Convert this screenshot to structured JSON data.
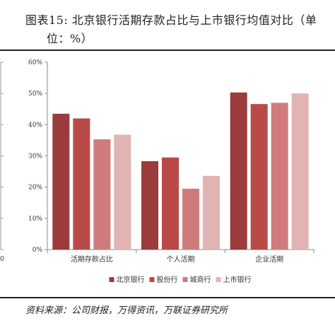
{
  "title": {
    "line1": "图表15: 北京银行活期存款占比与上市银行均值对比（单",
    "line2": "位：%）"
  },
  "source": "资料来源：公司财报，万得资讯，万联证券研究所",
  "left_axis_stub": "0",
  "chart_data": {
    "type": "bar",
    "categories": [
      "活期存款占比",
      "个人活期",
      "企业活期"
    ],
    "series": [
      {
        "name": "北京银行",
        "color": "#9b3b3b",
        "values": [
          43.5,
          28.3,
          50.3
        ]
      },
      {
        "name": "股份行",
        "color": "#b94a48",
        "values": [
          42.0,
          29.5,
          46.6
        ]
      },
      {
        "name": "城商行",
        "color": "#d07b7b",
        "values": [
          35.3,
          19.5,
          47.0
        ]
      },
      {
        "name": "上市银行",
        "color": "#e2b3b3",
        "values": [
          36.8,
          23.6,
          50.0
        ]
      }
    ],
    "yticks": [
      "0%",
      "10%",
      "20%",
      "30%",
      "40%",
      "50%",
      "60%"
    ],
    "ylim": [
      0,
      60
    ],
    "legend_position": "bottom",
    "grid": false
  }
}
